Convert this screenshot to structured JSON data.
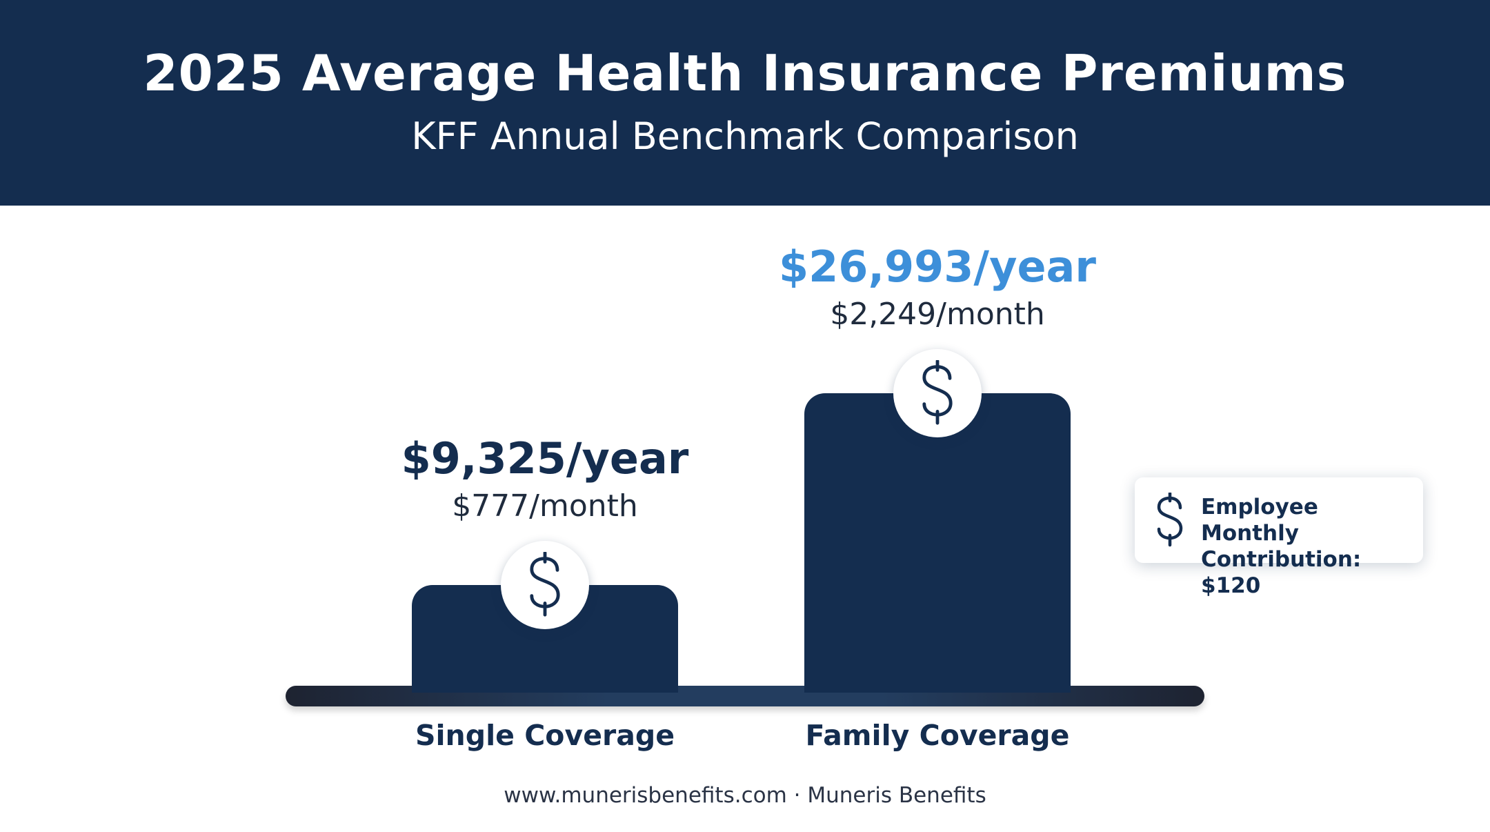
{
  "header": {
    "title": "2025 Average Health Insurance Premiums",
    "subtitle": "KFF Annual Benchmark Comparison"
  },
  "chart_data": {
    "type": "bar",
    "categories": [
      "Single Coverage",
      "Family Coverage"
    ],
    "values": [
      9325,
      26993
    ],
    "monthly_values": [
      777,
      2249
    ],
    "title": "2025 Average Health Insurance Premiums",
    "subtitle": "KFF Annual Benchmark Comparison",
    "xlabel": "",
    "ylabel": "",
    "grid": false,
    "ylim": [
      0,
      26993
    ],
    "data_labels": {
      "annual": [
        "$9,325/year",
        "$26,993/year"
      ],
      "monthly": [
        "$777/month",
        "$2,249/month"
      ]
    },
    "annotation": "Employee Monthly Contribution: $120",
    "colors": {
      "bar": "#142d4f",
      "annual_label": [
        "#142d4f",
        "#3d8fd9"
      ]
    }
  },
  "note": {
    "line1": "Employee Monthly",
    "line2": "Contribution: $120",
    "icon": "dollar-sign-icon"
  },
  "footer": {
    "text": "www.munerisbenefits.com · Muneris Benefits"
  },
  "icons": {
    "bar_badge": "dollar-sign-icon"
  }
}
